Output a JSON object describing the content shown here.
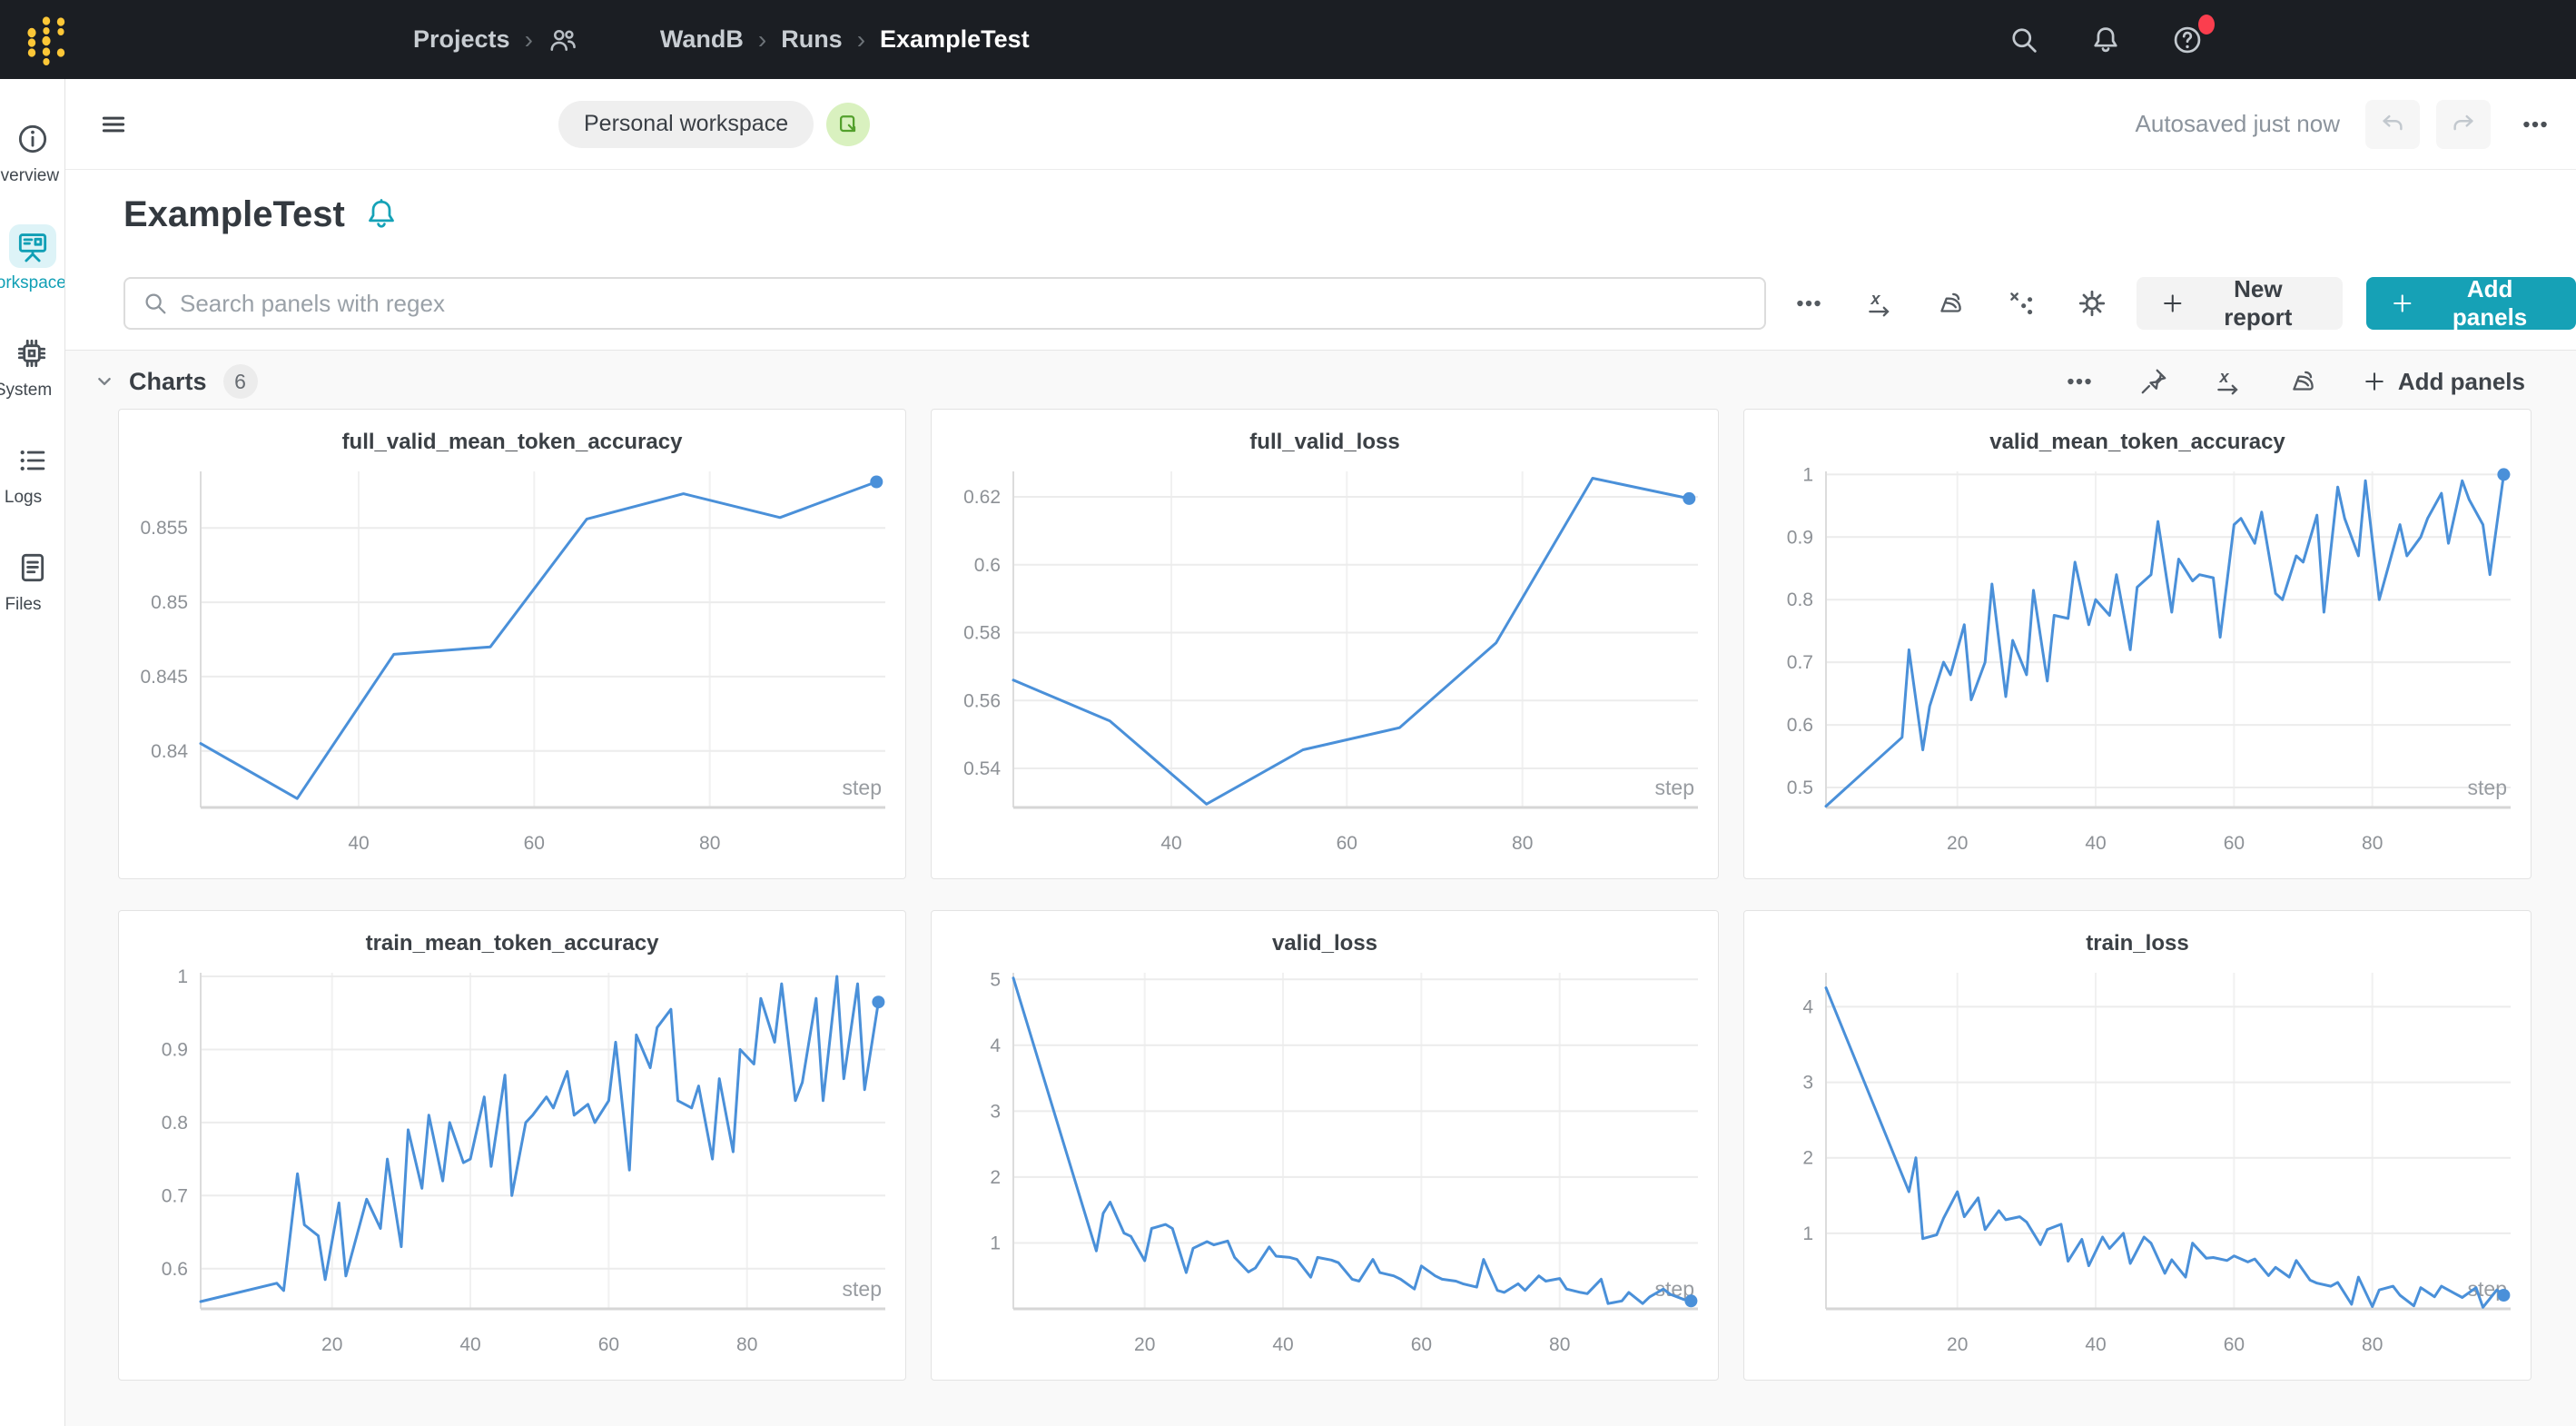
{
  "navbar": {
    "breadcrumb": [
      "Projects",
      "WandB",
      "Runs",
      "ExampleTest"
    ],
    "separator": "›"
  },
  "sidebar": {
    "items": [
      {
        "label": "Overview",
        "icon": "info-icon",
        "active": false
      },
      {
        "label": "Workspace",
        "icon": "workspace-icon",
        "active": true
      },
      {
        "label": "System",
        "icon": "chip-icon",
        "active": false
      },
      {
        "label": "Logs",
        "icon": "logs-icon",
        "active": false
      },
      {
        "label": "Files",
        "icon": "files-icon",
        "active": false
      }
    ]
  },
  "header": {
    "workspace_badge": "Personal workspace",
    "autosave_status": "Autosaved just now"
  },
  "page": {
    "title": "ExampleTest"
  },
  "toolbar": {
    "search_placeholder": "Search panels with regex",
    "new_report_label": "New report",
    "add_panels_label": "Add panels"
  },
  "charts_section": {
    "title": "Charts",
    "count": "6",
    "add_panels_label": "Add panels"
  },
  "colors": {
    "navbar_bg": "#1b1e23",
    "accent_teal": "#16a1b6",
    "active_item_teal": "#109fb5",
    "line_blue": "#4a90d9",
    "notification_red": "#fb3e4e",
    "logo_gold": "#fcc737",
    "report_green": "#53a02c"
  },
  "chart_data": [
    {
      "type": "line",
      "title": "full_valid_mean_token_accuracy",
      "xlabel": "step",
      "x": [
        22,
        33,
        44,
        55,
        66,
        77,
        88,
        99
      ],
      "y": [
        0.8405,
        0.8368,
        0.8465,
        0.847,
        0.8556,
        0.8573,
        0.8557,
        0.8581
      ],
      "xticks": [
        40,
        60,
        80
      ],
      "yticks": [
        0.855,
        0.85,
        0.845,
        0.84
      ],
      "xlim": [
        22,
        100
      ],
      "ylim": [
        0.8362,
        0.8588
      ],
      "grid": true,
      "end_marker": true,
      "legend": "none"
    },
    {
      "type": "line",
      "title": "full_valid_loss",
      "xlabel": "step",
      "x": [
        22,
        33,
        44,
        55,
        66,
        77,
        88,
        99
      ],
      "y": [
        0.566,
        0.554,
        0.5295,
        0.5455,
        0.552,
        0.577,
        0.6255,
        0.6195
      ],
      "xticks": [
        40,
        60,
        80
      ],
      "yticks": [
        0.62,
        0.6,
        0.58,
        0.56,
        0.54
      ],
      "xlim": [
        22,
        100
      ],
      "ylim": [
        0.5285,
        0.6275
      ],
      "grid": true,
      "end_marker": true,
      "legend": "none"
    },
    {
      "type": "line",
      "title": "valid_mean_token_accuracy",
      "xlabel": "step",
      "x": [
        1,
        12,
        13,
        15,
        16,
        18,
        19,
        21,
        22,
        24,
        25,
        27,
        28,
        30,
        31,
        33,
        34,
        36,
        37,
        39,
        40,
        42,
        43,
        45,
        46,
        48,
        49,
        51,
        52,
        54,
        55,
        57,
        58,
        60,
        61,
        63,
        64,
        66,
        67,
        69,
        70,
        72,
        73,
        75,
        76,
        78,
        79,
        81,
        82,
        84,
        85,
        87,
        88,
        90,
        91,
        93,
        94,
        96,
        97,
        99
      ],
      "y": [
        0.47,
        0.58,
        0.72,
        0.56,
        0.63,
        0.7,
        0.68,
        0.76,
        0.64,
        0.7,
        0.825,
        0.645,
        0.735,
        0.68,
        0.815,
        0.67,
        0.775,
        0.77,
        0.86,
        0.76,
        0.8,
        0.775,
        0.84,
        0.72,
        0.82,
        0.84,
        0.925,
        0.78,
        0.865,
        0.83,
        0.84,
        0.835,
        0.74,
        0.92,
        0.93,
        0.89,
        0.94,
        0.81,
        0.8,
        0.87,
        0.86,
        0.935,
        0.78,
        0.98,
        0.93,
        0.87,
        0.99,
        0.8,
        0.84,
        0.92,
        0.87,
        0.9,
        0.93,
        0.97,
        0.89,
        0.99,
        0.96,
        0.92,
        0.84,
        1.0
      ],
      "xticks": [
        20,
        40,
        60,
        80
      ],
      "yticks": [
        1,
        0.9,
        0.8,
        0.7,
        0.6,
        0.5
      ],
      "xlim": [
        1,
        100
      ],
      "ylim": [
        0.468,
        1.005
      ],
      "grid": true,
      "end_marker": true,
      "legend": "none"
    },
    {
      "type": "line",
      "title": "train_mean_token_accuracy",
      "xlabel": "step",
      "x": [
        1,
        12,
        13,
        15,
        16,
        18,
        19,
        21,
        22,
        24,
        25,
        27,
        28,
        30,
        31,
        33,
        34,
        36,
        37,
        39,
        40,
        42,
        43,
        45,
        46,
        48,
        49,
        51,
        52,
        54,
        55,
        57,
        58,
        60,
        61,
        63,
        64,
        66,
        67,
        69,
        70,
        72,
        73,
        75,
        76,
        78,
        79,
        81,
        82,
        84,
        85,
        87,
        88,
        90,
        91,
        93,
        94,
        96,
        97,
        99
      ],
      "y": [
        0.555,
        0.58,
        0.57,
        0.73,
        0.66,
        0.645,
        0.585,
        0.69,
        0.59,
        0.66,
        0.695,
        0.655,
        0.75,
        0.63,
        0.79,
        0.71,
        0.81,
        0.72,
        0.8,
        0.745,
        0.75,
        0.835,
        0.74,
        0.865,
        0.7,
        0.8,
        0.81,
        0.835,
        0.82,
        0.87,
        0.81,
        0.825,
        0.8,
        0.83,
        0.91,
        0.735,
        0.92,
        0.875,
        0.93,
        0.955,
        0.83,
        0.82,
        0.85,
        0.75,
        0.86,
        0.76,
        0.9,
        0.88,
        0.97,
        0.91,
        0.99,
        0.83,
        0.855,
        0.97,
        0.83,
        1.0,
        0.86,
        0.99,
        0.845,
        0.965
      ],
      "xticks": [
        20,
        40,
        60,
        80
      ],
      "yticks": [
        1,
        0.9,
        0.8,
        0.7,
        0.6
      ],
      "xlim": [
        1,
        100
      ],
      "ylim": [
        0.545,
        1.005
      ],
      "grid": true,
      "end_marker": true,
      "legend": "none"
    },
    {
      "type": "line",
      "title": "valid_loss",
      "xlabel": "step",
      "x": [
        1,
        13,
        14,
        15,
        17,
        18,
        20,
        21,
        23,
        24,
        26,
        27,
        29,
        30,
        32,
        33,
        35,
        36,
        38,
        39,
        41,
        42,
        44,
        45,
        47,
        48,
        50,
        51,
        53,
        54,
        56,
        57,
        59,
        60,
        62,
        63,
        65,
        66,
        68,
        69,
        71,
        72,
        74,
        75,
        77,
        78,
        80,
        81,
        83,
        84,
        86,
        87,
        89,
        90,
        92,
        93,
        95,
        96,
        98,
        99
      ],
      "y": [
        5.02,
        0.88,
        1.45,
        1.62,
        1.15,
        1.1,
        0.73,
        1.22,
        1.28,
        1.22,
        0.55,
        0.92,
        1.02,
        0.97,
        1.03,
        0.78,
        0.56,
        0.62,
        0.94,
        0.8,
        0.78,
        0.75,
        0.48,
        0.78,
        0.74,
        0.7,
        0.45,
        0.42,
        0.75,
        0.55,
        0.5,
        0.45,
        0.3,
        0.65,
        0.5,
        0.45,
        0.42,
        0.38,
        0.33,
        0.75,
        0.28,
        0.25,
        0.38,
        0.28,
        0.5,
        0.42,
        0.46,
        0.3,
        0.25,
        0.23,
        0.45,
        0.08,
        0.12,
        0.25,
        0.08,
        0.18,
        0.3,
        0.22,
        0.14,
        0.12
      ],
      "xticks": [
        20,
        40,
        60,
        80
      ],
      "yticks": [
        5,
        4,
        3,
        2,
        1
      ],
      "xlim": [
        1,
        100
      ],
      "ylim": [
        0,
        5.1
      ],
      "grid": true,
      "end_marker": true,
      "legend": "none"
    },
    {
      "type": "line",
      "title": "train_loss",
      "xlabel": "step",
      "x": [
        1,
        13,
        14,
        15,
        17,
        18,
        20,
        21,
        23,
        24,
        26,
        27,
        29,
        30,
        32,
        33,
        35,
        36,
        38,
        39,
        41,
        42,
        44,
        45,
        47,
        48,
        50,
        51,
        53,
        54,
        56,
        57,
        59,
        60,
        62,
        63,
        65,
        66,
        68,
        69,
        71,
        72,
        74,
        75,
        77,
        78,
        80,
        81,
        83,
        84,
        86,
        87,
        89,
        90,
        92,
        93,
        95,
        96,
        98,
        99
      ],
      "y": [
        4.25,
        1.55,
        2.0,
        0.93,
        0.98,
        1.2,
        1.55,
        1.22,
        1.47,
        1.05,
        1.3,
        1.18,
        1.22,
        1.15,
        0.85,
        1.05,
        1.12,
        0.63,
        0.92,
        0.57,
        0.95,
        0.8,
        1.0,
        0.6,
        0.95,
        0.87,
        0.47,
        0.65,
        0.42,
        0.87,
        0.67,
        0.68,
        0.64,
        0.7,
        0.62,
        0.66,
        0.44,
        0.55,
        0.42,
        0.64,
        0.38,
        0.34,
        0.3,
        0.35,
        0.06,
        0.42,
        0.03,
        0.25,
        0.3,
        0.18,
        0.04,
        0.28,
        0.16,
        0.3,
        0.2,
        0.15,
        0.28,
        0.02,
        0.25,
        0.18
      ],
      "xticks": [
        20,
        40,
        60,
        80
      ],
      "yticks": [
        4,
        3,
        2,
        1
      ],
      "xlim": [
        1,
        100
      ],
      "ylim": [
        0,
        4.45
      ],
      "grid": true,
      "end_marker": true,
      "legend": "none"
    }
  ]
}
